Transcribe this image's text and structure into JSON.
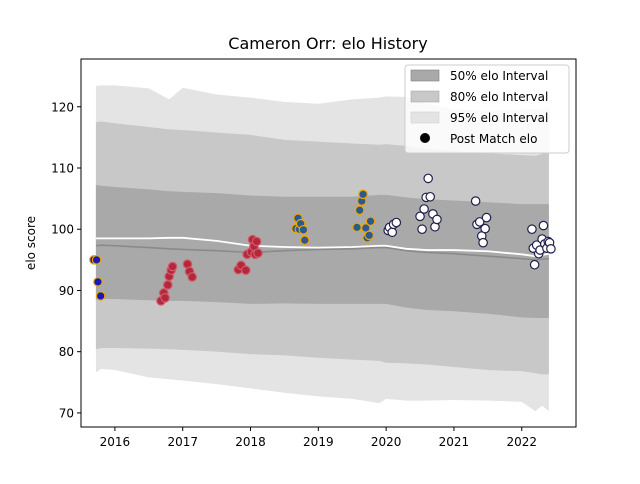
{
  "chart_data": {
    "type": "scatter",
    "title": "Cameron Orr: elo History",
    "xlabel": "",
    "ylabel": "elo score",
    "xlim": [
      2015.5,
      2022.8
    ],
    "ylim": [
      67.7,
      127.8
    ],
    "x_ticks": [
      2016,
      2017,
      2018,
      2019,
      2020,
      2021,
      2022
    ],
    "x_tick_labels": [
      "2016",
      "2017",
      "2018",
      "2019",
      "2020",
      "2021",
      "2022"
    ],
    "y_ticks": [
      70,
      80,
      90,
      100,
      110,
      120
    ],
    "y_tick_labels": [
      "70",
      "80",
      "90",
      "100",
      "110",
      "120"
    ],
    "grid": false,
    "legend_position": "top-right",
    "legend": [
      {
        "label": "50% elo Interval",
        "kind": "band",
        "color": "#a9a9a9"
      },
      {
        "label": "80% elo Interval",
        "kind": "band",
        "color": "#c8c8c8"
      },
      {
        "label": "95% elo Interval",
        "kind": "band",
        "color": "#e4e4e4"
      },
      {
        "label": "Post Match elo",
        "kind": "marker",
        "color": "#000000"
      }
    ],
    "band_x": [
      2015.72,
      2015.8,
      2016.0,
      2016.5,
      2016.8,
      2017.0,
      2017.5,
      2018.0,
      2018.5,
      2019.0,
      2019.5,
      2019.9,
      2020.0,
      2020.3,
      2020.6,
      2021.0,
      2021.5,
      2022.0,
      2022.2,
      2022.3,
      2022.4
    ],
    "median": [
      97.3,
      97.4,
      97.3,
      97.0,
      96.8,
      96.7,
      96.5,
      96.2,
      96.5,
      96.7,
      96.8,
      97.0,
      97.0,
      96.5,
      96.2,
      96.0,
      95.6,
      95.2,
      95.0,
      95.1,
      95.2
    ],
    "mean": [
      98.5,
      98.5,
      98.5,
      98.5,
      98.6,
      98.6,
      98.1,
      97.3,
      97.1,
      97.0,
      97.1,
      97.3,
      97.3,
      96.8,
      96.6,
      96.6,
      96.4,
      95.9,
      95.6,
      95.8,
      96.0
    ],
    "band_50": {
      "lower": [
        88.5,
        88.6,
        88.6,
        88.4,
        88.3,
        88.3,
        88.1,
        87.8,
        87.9,
        87.8,
        87.8,
        87.8,
        87.8,
        87.2,
        86.8,
        86.6,
        86.2,
        85.6,
        85.5,
        85.5,
        85.5
      ],
      "upper": [
        107.2,
        107.1,
        106.9,
        106.5,
        106.2,
        106.1,
        105.9,
        105.5,
        105.3,
        105.3,
        105.3,
        105.6,
        105.6,
        105.2,
        104.9,
        104.7,
        104.4,
        104.1,
        104.1,
        104.1,
        104.1
      ]
    },
    "band_80": {
      "lower": [
        80.4,
        80.6,
        80.6,
        80.5,
        80.4,
        80.3,
        80.0,
        79.6,
        79.4,
        79.0,
        78.7,
        78.5,
        78.2,
        78.1,
        77.9,
        77.5,
        77.0,
        76.8,
        76.5,
        76.3,
        76.3
      ],
      "upper": [
        117.5,
        117.6,
        117.3,
        116.7,
        116.3,
        116.2,
        115.8,
        115.4,
        114.6,
        114.3,
        114.0,
        113.8,
        113.9,
        113.6,
        113.1,
        112.8,
        112.4,
        112.1,
        112.0,
        112.3,
        112.6
      ]
    },
    "band_95": {
      "lower": [
        76.6,
        77.2,
        77.0,
        75.8,
        75.5,
        75.3,
        74.7,
        74.0,
        73.3,
        72.7,
        72.3,
        71.6,
        72.3,
        72.0,
        72.0,
        72.1,
        72.0,
        71.8,
        70.3,
        71.2,
        70.3
      ],
      "upper": [
        123.4,
        123.5,
        123.5,
        123.0,
        121.2,
        123.1,
        122.0,
        121.5,
        120.8,
        120.5,
        121.2,
        121.5,
        121.7,
        121.6,
        120.5,
        119.6,
        119.3,
        119.5,
        119.6,
        119.6,
        119.8
      ]
    },
    "series": [
      {
        "face": "#1a1ab8",
        "edge": "#f0a500",
        "points": [
          [
            2015.69,
            95.0
          ],
          [
            2015.73,
            95.0
          ],
          [
            2015.75,
            91.4
          ],
          [
            2015.79,
            89.1
          ]
        ]
      },
      {
        "face": "#b5283b",
        "edge": "#d05a6c",
        "points": [
          [
            2016.68,
            88.3
          ],
          [
            2016.72,
            89.6
          ],
          [
            2016.74,
            88.8
          ],
          [
            2016.78,
            90.9
          ],
          [
            2016.8,
            92.3
          ],
          [
            2016.83,
            93.3
          ],
          [
            2016.85,
            93.9
          ],
          [
            2017.07,
            94.3
          ],
          [
            2017.1,
            93.1
          ],
          [
            2017.14,
            92.2
          ],
          [
            2017.82,
            93.4
          ],
          [
            2017.86,
            94.1
          ],
          [
            2017.93,
            93.3
          ],
          [
            2017.95,
            95.9
          ],
          [
            2018.01,
            96.3
          ],
          [
            2018.03,
            98.3
          ],
          [
            2018.05,
            97.2
          ],
          [
            2018.07,
            95.9
          ],
          [
            2018.09,
            98.0
          ],
          [
            2018.11,
            96.1
          ]
        ]
      },
      {
        "face": "#2c5a8c",
        "edge": "#f0a500",
        "points": [
          [
            2018.67,
            100.1
          ],
          [
            2018.7,
            101.8
          ],
          [
            2018.72,
            100.0
          ],
          [
            2018.74,
            100.9
          ],
          [
            2018.78,
            99.9
          ],
          [
            2018.8,
            98.2
          ],
          [
            2019.57,
            100.3
          ],
          [
            2019.61,
            103.1
          ],
          [
            2019.64,
            104.6
          ],
          [
            2019.66,
            105.7
          ],
          [
            2019.7,
            100.2
          ],
          [
            2019.72,
            98.6
          ],
          [
            2019.75,
            99.0
          ],
          [
            2019.77,
            101.3
          ]
        ]
      },
      {
        "face": "#ffffff",
        "edge": "#1f1f4d",
        "points": [
          [
            2020.03,
            99.8
          ],
          [
            2020.05,
            100.3
          ],
          [
            2020.09,
            99.5
          ],
          [
            2020.11,
            100.8
          ],
          [
            2020.15,
            101.1
          ],
          [
            2020.5,
            102.1
          ],
          [
            2020.53,
            100.0
          ],
          [
            2020.56,
            103.3
          ],
          [
            2020.59,
            105.2
          ],
          [
            2020.62,
            108.3
          ],
          [
            2020.65,
            105.3
          ],
          [
            2020.69,
            102.5
          ],
          [
            2020.72,
            100.4
          ],
          [
            2020.75,
            101.6
          ],
          [
            2021.32,
            104.6
          ],
          [
            2021.34,
            100.8
          ],
          [
            2021.38,
            101.2
          ],
          [
            2021.41,
            98.9
          ],
          [
            2021.43,
            97.8
          ],
          [
            2021.46,
            100.1
          ],
          [
            2021.48,
            101.9
          ],
          [
            2022.15,
            100.0
          ],
          [
            2022.17,
            96.9
          ],
          [
            2022.19,
            94.2
          ],
          [
            2022.22,
            97.4
          ],
          [
            2022.25,
            96.0
          ],
          [
            2022.27,
            96.6
          ],
          [
            2022.3,
            98.4
          ],
          [
            2022.32,
            100.6
          ],
          [
            2022.34,
            97.6
          ],
          [
            2022.37,
            96.9
          ],
          [
            2022.39,
            98.0
          ],
          [
            2022.41,
            97.8
          ],
          [
            2022.43,
            96.8
          ]
        ]
      }
    ]
  }
}
